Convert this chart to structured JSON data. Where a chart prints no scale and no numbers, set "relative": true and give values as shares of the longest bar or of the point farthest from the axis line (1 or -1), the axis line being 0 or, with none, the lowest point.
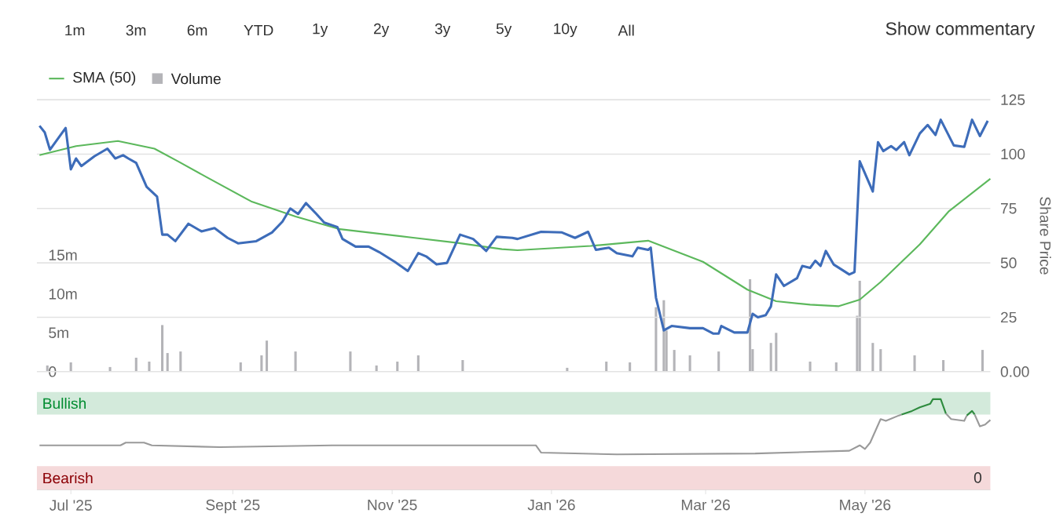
{
  "chart_data": [
    {
      "type": "line",
      "ylabel": "Share Price",
      "xlim": [
        "2025-06-18",
        "2026-06-18"
      ],
      "ylim": [
        0,
        125
      ],
      "yticks": [
        {
          "value": 0,
          "label": "0.00"
        },
        25,
        50,
        75,
        100,
        125
      ],
      "y2lim": [
        0,
        35
      ],
      "y2ticks": [
        {
          "value": 0,
          "label": "0"
        },
        {
          "value": 5,
          "label": "5m"
        },
        {
          "value": 10,
          "label": "10m"
        },
        {
          "value": 15,
          "label": "15m"
        }
      ],
      "grid": "y",
      "legend": "top left",
      "tick_labels": "y",
      "annotations": [
        "1m",
        "3m",
        "6m",
        "YTD",
        "1y",
        "2y",
        "3y",
        "5y",
        "10y",
        "All",
        "Show commentary"
      ],
      "series": [
        {
          "name": "SMA (50)",
          "color": "#5cb85c",
          "x": [
            "2025-06-19",
            "2025-07-03",
            "2025-07-19",
            "2025-08-02",
            "2025-08-11",
            "2025-08-22",
            "2025-09-08",
            "2025-09-25",
            "2025-10-12",
            "2025-11-09",
            "2025-11-26",
            "2025-12-13",
            "2025-12-19",
            "2026-01-16",
            "2026-02-07",
            "2026-02-28",
            "2026-03-17",
            "2026-03-28",
            "2026-04-10",
            "2026-04-21",
            "2026-04-29",
            "2026-05-07",
            "2026-05-22",
            "2026-06-02",
            "2026-06-18"
          ],
          "values": [
            99.5,
            103.7,
            106,
            102.5,
            96.7,
            89.4,
            78.3,
            71.3,
            65.5,
            61.6,
            59.2,
            56.3,
            55.8,
            57.8,
            60.2,
            50.5,
            37.7,
            32.4,
            30.8,
            30.1,
            33.1,
            41.2,
            58.5,
            73.6,
            88.7
          ]
        },
        {
          "type": "bar",
          "name": "Volume",
          "color": "#b4b4b8",
          "axis": "y2",
          "x": [
            "2025-06-22",
            "2025-07-01",
            "2025-07-16",
            "2025-07-26",
            "2025-07-31",
            "2025-08-05",
            "2025-08-07",
            "2025-08-12",
            "2025-09-04",
            "2025-09-12",
            "2025-09-14",
            "2025-09-25",
            "2025-10-16",
            "2025-10-26",
            "2025-11-03",
            "2025-11-11",
            "2025-11-28",
            "2026-01-07",
            "2026-01-22",
            "2026-01-31",
            "2026-02-10",
            "2026-02-13",
            "2026-02-14",
            "2026-02-17",
            "2026-02-23",
            "2026-03-06",
            "2026-03-18",
            "2026-03-19",
            "2026-03-26",
            "2026-03-28",
            "2026-04-10",
            "2026-04-20",
            "2026-04-28",
            "2026-04-29",
            "2026-05-04",
            "2026-05-07",
            "2026-05-20",
            "2026-05-31",
            "2026-06-15"
          ],
          "values": [
            0.8,
            1.2,
            0.6,
            1.8,
            1.3,
            6.0,
            2.4,
            2.6,
            1.2,
            2.1,
            4.0,
            2.6,
            2.6,
            0.8,
            1.3,
            2.1,
            1.5,
            0.5,
            1.3,
            1.2,
            8.3,
            9.2,
            5.3,
            2.8,
            2.1,
            2.6,
            11.9,
            2.9,
            3.7,
            5.0,
            1.3,
            1.2,
            7.2,
            11.7,
            3.7,
            2.9,
            2.1,
            1.5,
            2.8
          ]
        },
        {
          "color": "#3d6cb9",
          "x": [
            "2025-06-19",
            "2025-06-21",
            "2025-06-23",
            "2025-06-29",
            "2025-07-01",
            "2025-07-03",
            "2025-07-05",
            "2025-07-10",
            "2025-07-15",
            "2025-07-18",
            "2025-07-21",
            "2025-07-23",
            "2025-07-26",
            "2025-07-30",
            "2025-08-03",
            "2025-08-05",
            "2025-08-07",
            "2025-08-10",
            "2025-08-15",
            "2025-08-20",
            "2025-08-25",
            "2025-08-30",
            "2025-09-03",
            "2025-09-10",
            "2025-09-16",
            "2025-09-20",
            "2025-09-23",
            "2025-09-26",
            "2025-09-29",
            "2025-10-03",
            "2025-10-06",
            "2025-10-11",
            "2025-10-13",
            "2025-10-18",
            "2025-10-23",
            "2025-10-27",
            "2025-11-02",
            "2025-11-07",
            "2025-11-11",
            "2025-11-14",
            "2025-11-18",
            "2025-11-22",
            "2025-11-27",
            "2025-12-02",
            "2025-12-07",
            "2025-12-11",
            "2025-12-17",
            "2025-12-19",
            "2025-12-28",
            "2026-01-05",
            "2026-01-10",
            "2026-01-15",
            "2026-01-18",
            "2026-01-23",
            "2026-01-26",
            "2026-02-01",
            "2026-02-03",
            "2026-02-07",
            "2026-02-08",
            "2026-02-10",
            "2026-02-13",
            "2026-02-16",
            "2026-02-23",
            "2026-02-28",
            "2026-03-04",
            "2026-03-06",
            "2026-03-07",
            "2026-03-12",
            "2026-03-17",
            "2026-03-19",
            "2026-03-21",
            "2026-03-24",
            "2026-03-26",
            "2026-03-28",
            "2026-03-31",
            "2026-04-05",
            "2026-04-07",
            "2026-04-10",
            "2026-04-12",
            "2026-04-14",
            "2026-04-16",
            "2026-04-19",
            "2026-04-25",
            "2026-04-27",
            "2026-04-29",
            "2026-05-04",
            "2026-05-06",
            "2026-05-08",
            "2026-05-11",
            "2026-05-13",
            "2026-05-16",
            "2026-05-18",
            "2026-05-22",
            "2026-05-25",
            "2026-05-28",
            "2026-05-30",
            "2026-06-04",
            "2026-06-08",
            "2026-06-11",
            "2026-06-14",
            "2026-06-17"
          ],
          "values": [
            113,
            110,
            102,
            112,
            93,
            98,
            94.5,
            99,
            102.5,
            98,
            99.5,
            98,
            96,
            85,
            80.5,
            63,
            63,
            60,
            68,
            64.5,
            66,
            61.5,
            59,
            60,
            64,
            69,
            75,
            72.5,
            77.5,
            72.5,
            68.5,
            66.5,
            61,
            57.5,
            57.5,
            55,
            50.5,
            46.3,
            54.5,
            53,
            49.3,
            50,
            63,
            61,
            55.5,
            62,
            61.5,
            61,
            64.3,
            64,
            61.5,
            64.3,
            56,
            57,
            54.5,
            53,
            57,
            56,
            57,
            34,
            19,
            21,
            20,
            20,
            17.5,
            17.5,
            21,
            18,
            18,
            26.6,
            25,
            26,
            30,
            44.7,
            39.4,
            43,
            48.6,
            47.7,
            51,
            48.6,
            55.5,
            49.3,
            44.7,
            45.8,
            96.7,
            82.8,
            105.5,
            101.4,
            103.7,
            101.9,
            105.5,
            99.5,
            109.5,
            113.4,
            108.8,
            115.8,
            104,
            103.3,
            115.8,
            108.3,
            115.3
          ]
        }
      ]
    },
    {
      "type": "line",
      "relative": true,
      "xlim": [
        "2025-06-18",
        "2026-06-18"
      ],
      "tick_labels": "x",
      "xticks": [
        {
          "value": "2025-07-01",
          "label": "Jul '25"
        },
        {
          "value": "2025-09-01",
          "label": "Sept '25"
        },
        {
          "value": "2025-11-01",
          "label": "Nov '25"
        },
        {
          "value": "2026-01-01",
          "label": "Jan '26"
        },
        {
          "value": "2026-03-01",
          "label": "Mar '26"
        },
        {
          "value": "2026-05-01",
          "label": "May '26"
        }
      ],
      "bands": [
        {
          "axis": "y",
          "from": 0.83,
          "to": 1.08,
          "label": "Bullish",
          "color": "#d3eadb"
        },
        {
          "axis": "y",
          "from": 0,
          "to": 0.26,
          "label": "Bearish",
          "color": "#f5d9da"
        }
      ],
      "annotations": [
        "0"
      ],
      "series": [
        {
          "color": "#9a9a9a",
          "x": [
            "2025-06-19",
            "2025-07-20",
            "2025-07-22",
            "2025-07-29",
            "2025-08-01",
            "2025-08-27",
            "2025-10-09",
            "2025-12-26",
            "2025-12-28",
            "2026-01-26",
            "2026-03-20",
            "2026-04-25",
            "2026-04-29",
            "2026-05-01",
            "2026-05-03",
            "2026-05-07",
            "2026-05-09",
            "2026-05-14",
            "2026-05-15"
          ],
          "values": [
            0.49,
            0.49,
            0.52,
            0.52,
            0.49,
            0.47,
            0.49,
            0.49,
            0.41,
            0.39,
            0.4,
            0.43,
            0.49,
            0.45,
            0.52,
            0.78,
            0.76,
            0.82,
            0.83
          ]
        },
        {
          "color": "#2e8b3e",
          "x": [
            "2026-05-15",
            "2026-05-19",
            "2026-05-22",
            "2026-05-26",
            "2026-05-27",
            "2026-05-30",
            "2026-06-01"
          ],
          "values": [
            0.83,
            0.87,
            0.91,
            0.95,
            1,
            1,
            0.84
          ]
        },
        {
          "color": "#9a9a9a",
          "x": [
            "2026-06-01",
            "2026-06-03",
            "2026-06-08",
            "2026-06-09"
          ],
          "values": [
            0.84,
            0.78,
            0.76,
            0.82
          ]
        },
        {
          "color": "#2e8b3e",
          "x": [
            "2026-06-09",
            "2026-06-11",
            "2026-06-12"
          ],
          "values": [
            0.82,
            0.87,
            0.83
          ]
        },
        {
          "color": "#9a9a9a",
          "x": [
            "2026-06-12",
            "2026-06-14",
            "2026-06-16",
            "2026-06-18"
          ],
          "values": [
            0.83,
            0.7,
            0.72,
            0.77
          ]
        }
      ]
    }
  ]
}
